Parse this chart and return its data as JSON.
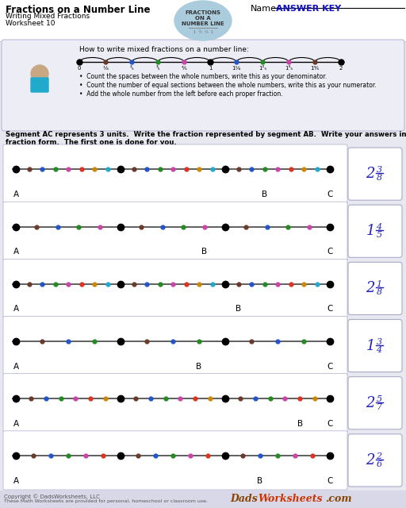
{
  "title": "Fractions on a Number Line",
  "subtitle1": "Writing Mixed Fractions",
  "subtitle2": "Worksheet 10",
  "name_label": "Name:",
  "answer_key": "ANSWER KEY",
  "bg_color": "#e8e8f0",
  "panel_bg": "#ffffff",
  "header_bg": "#ffffff",
  "instruction_bg": "#ededf5",
  "instruction_title": "How to write mixed fractions on a number line:",
  "instructions": [
    "Count the spaces between the whole numbers, write this as your denominator.",
    "Count the number of equal sections between the whole numbers, write this as your numerator.",
    "Add the whole number from the left before each proper fraction."
  ],
  "problem_line1": "Segment AC represents 3 units.  Write the fraction represented by segment AB.  Write your answers in mixed",
  "problem_line2": "fraction form.  The first one is done for you.",
  "problems": [
    {
      "denominator": 8,
      "answer_whole": "2",
      "answer_num": "3",
      "answer_den": "8"
    },
    {
      "denominator": 5,
      "answer_whole": "1",
      "answer_num": "4",
      "answer_den": "5"
    },
    {
      "denominator": 8,
      "answer_whole": "2",
      "answer_num": "1",
      "answer_den": "8"
    },
    {
      "denominator": 4,
      "answer_whole": "1",
      "answer_num": "3",
      "answer_den": "4"
    },
    {
      "denominator": 7,
      "answer_whole": "2",
      "answer_num": "5",
      "answer_den": "7"
    },
    {
      "denominator": 6,
      "answer_whole": "2",
      "answer_num": "2",
      "answer_den": "6"
    }
  ],
  "dot_colors": [
    "#6B3A2A",
    "#2255CC",
    "#228B22",
    "#CC44AA",
    "#DD3322",
    "#CC8800",
    "#22AACC",
    "#7722CC",
    "#FF8C00",
    "#22CC66",
    "#FF5533",
    "#22CCCC",
    "#8844CC",
    "#99CC22",
    "#FF69B4"
  ],
  "line_color": "#444444",
  "answer_color": "#2222bb",
  "footer_bg": "#d8d8e8",
  "badge_color": "#aaccdd",
  "badge_text_color": "#333333"
}
